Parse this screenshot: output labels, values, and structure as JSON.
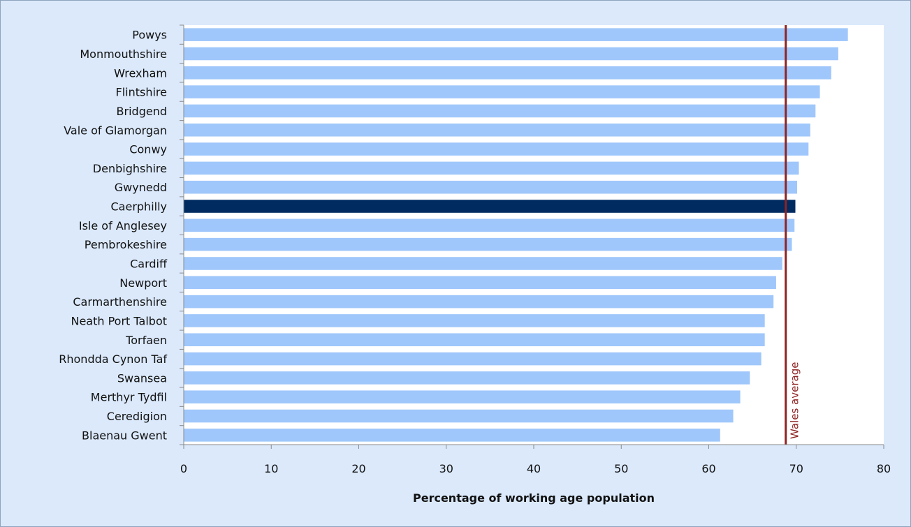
{
  "chart_data": {
    "type": "bar",
    "orientation": "horizontal",
    "title": "",
    "xlabel": "Percentage of working age population",
    "ylabel": "",
    "xlim": [
      0,
      80
    ],
    "x_ticks": [
      0,
      10,
      20,
      30,
      40,
      50,
      60,
      70,
      80
    ],
    "grid": false,
    "categories": [
      "Powys",
      "Monmouthshire",
      "Wrexham",
      "Flintshire",
      "Bridgend",
      "Vale of Glamorgan",
      "Conwy",
      "Denbighshire",
      "Gwynedd",
      "Caerphilly",
      "Isle of Anglesey",
      "Pembrokeshire",
      "Cardiff",
      "Newport",
      "Carmarthenshire",
      "Neath Port Talbot",
      "Torfaen",
      "Rhondda Cynon Taf",
      "Swansea",
      "Merthyr Tydfil",
      "Ceredigion",
      "Blaenau Gwent"
    ],
    "values": [
      75.9,
      74.8,
      74.0,
      72.7,
      72.2,
      71.6,
      71.4,
      70.3,
      70.1,
      69.9,
      69.8,
      69.5,
      68.4,
      67.7,
      67.4,
      66.4,
      66.4,
      66.0,
      64.7,
      63.6,
      62.8,
      61.3
    ],
    "highlight_category": "Caerphilly",
    "reference_line": {
      "label": "Wales average",
      "value": 68.8
    },
    "colors": {
      "bar": "#9fc7fb",
      "highlight_bar": "#002b60",
      "reference_line": "#8f2323",
      "background": "#dbe9fb",
      "plot_background": "#ffffff"
    }
  }
}
